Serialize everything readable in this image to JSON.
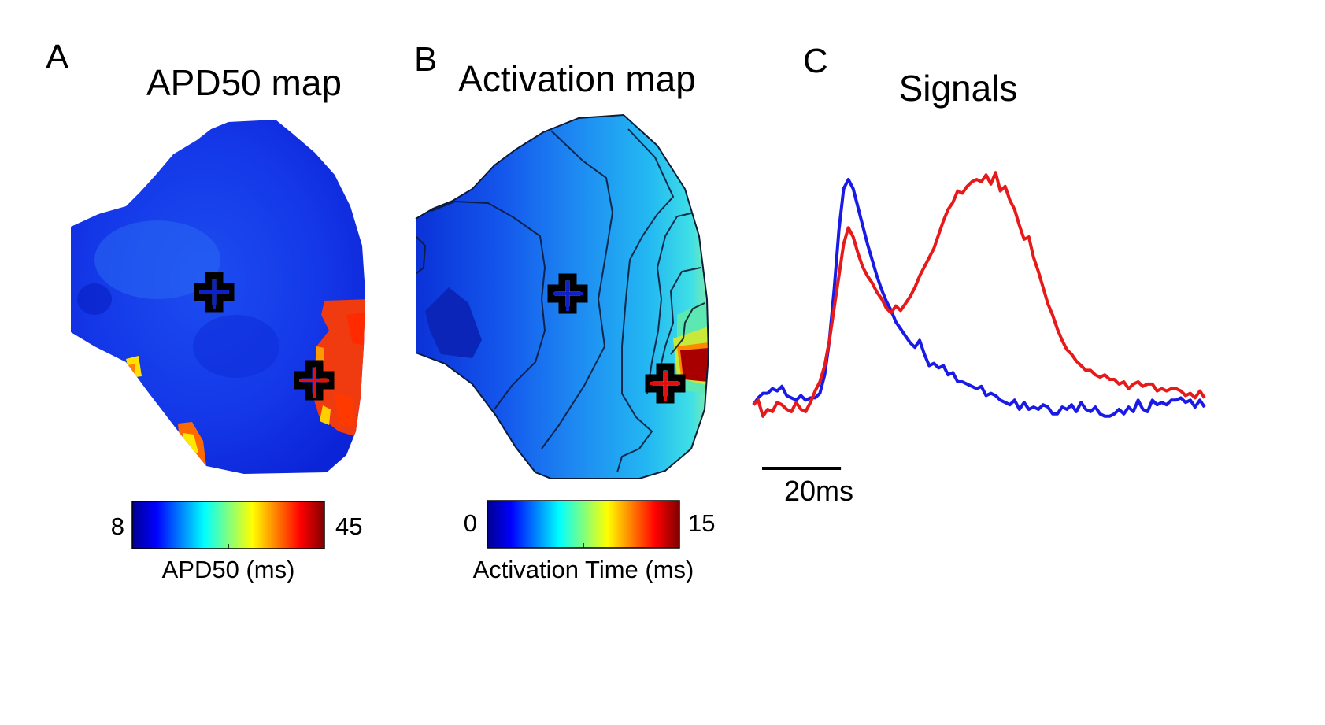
{
  "panel_a": {
    "letter": "A",
    "title": "APD50 map",
    "colorbar": {
      "min_label": "8",
      "max_label": "45",
      "label": "APD50 (ms)"
    },
    "markers": [
      {
        "name": "blue-site",
        "color": "#1020c8"
      },
      {
        "name": "red-site",
        "color": "#e01010"
      }
    ]
  },
  "panel_b": {
    "letter": "B",
    "title": "Activation map",
    "colorbar": {
      "min_label": "0",
      "max_label": "15",
      "label": "Activation Time (ms)"
    },
    "markers": [
      {
        "name": "blue-site",
        "color": "#1020c8"
      },
      {
        "name": "red-site",
        "color": "#e01010"
      }
    ]
  },
  "panel_c": {
    "letter": "C",
    "title": "Signals",
    "scale_bar_label": "20ms"
  },
  "chart_data": {
    "type": "line",
    "title": "Signals",
    "xlabel": "",
    "ylabel": "",
    "x_unit": "ms",
    "scale_bar_ms": 20,
    "grid": false,
    "series": [
      {
        "name": "blue",
        "color": "#1a1ae6",
        "points": [
          [
            0,
            0.02
          ],
          [
            1,
            0.05
          ],
          [
            2,
            0.07
          ],
          [
            3,
            0.07
          ],
          [
            4,
            0.09
          ],
          [
            5,
            0.08
          ],
          [
            6,
            0.1
          ],
          [
            7,
            0.06
          ],
          [
            8,
            0.05
          ],
          [
            9,
            0.04
          ],
          [
            10,
            0.06
          ],
          [
            11,
            0.04
          ],
          [
            12,
            0.05
          ],
          [
            13,
            0.05
          ],
          [
            14,
            0.07
          ],
          [
            15,
            0.15
          ],
          [
            16,
            0.3
          ],
          [
            17,
            0.52
          ],
          [
            18,
            0.78
          ],
          [
            19,
            0.96
          ],
          [
            20,
            1.0
          ],
          [
            21,
            0.96
          ],
          [
            22,
            0.88
          ],
          [
            23,
            0.8
          ],
          [
            24,
            0.72
          ],
          [
            25,
            0.65
          ],
          [
            26,
            0.58
          ],
          [
            27,
            0.52
          ],
          [
            28,
            0.47
          ],
          [
            29,
            0.43
          ],
          [
            30,
            0.38
          ],
          [
            31,
            0.35
          ],
          [
            32,
            0.32
          ],
          [
            33,
            0.29
          ],
          [
            34,
            0.27
          ],
          [
            35,
            0.3
          ],
          [
            36,
            0.24
          ],
          [
            37,
            0.19
          ],
          [
            38,
            0.2
          ],
          [
            39,
            0.18
          ],
          [
            40,
            0.19
          ],
          [
            41,
            0.15
          ],
          [
            42,
            0.16
          ],
          [
            43,
            0.12
          ],
          [
            44,
            0.12
          ],
          [
            45,
            0.11
          ],
          [
            46,
            0.1
          ],
          [
            47,
            0.09
          ],
          [
            48,
            0.1
          ],
          [
            49,
            0.06
          ],
          [
            50,
            0.07
          ],
          [
            51,
            0.06
          ],
          [
            52,
            0.04
          ],
          [
            53,
            0.03
          ],
          [
            54,
            0.02
          ],
          [
            55,
            0.04
          ],
          [
            56,
            0.0
          ],
          [
            57,
            0.03
          ],
          [
            58,
            0.0
          ],
          [
            59,
            0.01
          ],
          [
            60,
            0.0
          ],
          [
            61,
            0.02
          ],
          [
            62,
            0.01
          ],
          [
            63,
            -0.02
          ],
          [
            64,
            -0.02
          ],
          [
            65,
            0.01
          ],
          [
            66,
            0.0
          ],
          [
            67,
            0.02
          ],
          [
            68,
            -0.01
          ],
          [
            69,
            0.03
          ],
          [
            70,
            0.0
          ],
          [
            71,
            -0.01
          ],
          [
            72,
            0.01
          ],
          [
            73,
            -0.02
          ],
          [
            74,
            -0.03
          ],
          [
            75,
            -0.03
          ],
          [
            76,
            -0.02
          ],
          [
            77,
            0.0
          ],
          [
            78,
            -0.02
          ],
          [
            79,
            0.01
          ],
          [
            80,
            -0.01
          ],
          [
            81,
            0.04
          ],
          [
            82,
            0.0
          ],
          [
            83,
            -0.01
          ],
          [
            84,
            0.04
          ],
          [
            85,
            0.02
          ],
          [
            86,
            0.03
          ],
          [
            87,
            0.02
          ],
          [
            88,
            0.04
          ],
          [
            89,
            0.04
          ],
          [
            90,
            0.05
          ],
          [
            91,
            0.03
          ],
          [
            92,
            0.04
          ],
          [
            93,
            0.01
          ],
          [
            94,
            0.04
          ],
          [
            95,
            0.01
          ]
        ]
      },
      {
        "name": "red",
        "color": "#e61a1a",
        "points": [
          [
            0,
            0.02
          ],
          [
            1,
            0.04
          ],
          [
            2,
            -0.03
          ],
          [
            3,
            0.0
          ],
          [
            4,
            -0.01
          ],
          [
            5,
            0.03
          ],
          [
            6,
            0.02
          ],
          [
            7,
            0.0
          ],
          [
            8,
            -0.01
          ],
          [
            9,
            0.03
          ],
          [
            10,
            0.0
          ],
          [
            11,
            -0.01
          ],
          [
            12,
            0.03
          ],
          [
            13,
            0.08
          ],
          [
            14,
            0.12
          ],
          [
            15,
            0.19
          ],
          [
            16,
            0.3
          ],
          [
            17,
            0.44
          ],
          [
            18,
            0.58
          ],
          [
            19,
            0.72
          ],
          [
            20,
            0.79
          ],
          [
            21,
            0.75
          ],
          [
            22,
            0.68
          ],
          [
            23,
            0.62
          ],
          [
            24,
            0.58
          ],
          [
            25,
            0.55
          ],
          [
            26,
            0.51
          ],
          [
            27,
            0.48
          ],
          [
            28,
            0.44
          ],
          [
            29,
            0.42
          ],
          [
            30,
            0.45
          ],
          [
            31,
            0.43
          ],
          [
            32,
            0.46
          ],
          [
            33,
            0.49
          ],
          [
            34,
            0.53
          ],
          [
            35,
            0.58
          ],
          [
            36,
            0.62
          ],
          [
            37,
            0.66
          ],
          [
            38,
            0.7
          ],
          [
            39,
            0.76
          ],
          [
            40,
            0.82
          ],
          [
            41,
            0.87
          ],
          [
            42,
            0.9
          ],
          [
            43,
            0.95
          ],
          [
            44,
            0.94
          ],
          [
            45,
            0.97
          ],
          [
            46,
            0.99
          ],
          [
            47,
            1.0
          ],
          [
            48,
            0.99
          ],
          [
            49,
            1.02
          ],
          [
            50,
            0.98
          ],
          [
            51,
            1.03
          ],
          [
            52,
            0.95
          ],
          [
            53,
            0.97
          ],
          [
            54,
            0.91
          ],
          [
            55,
            0.87
          ],
          [
            56,
            0.8
          ],
          [
            57,
            0.74
          ],
          [
            58,
            0.75
          ],
          [
            59,
            0.66
          ],
          [
            60,
            0.6
          ],
          [
            61,
            0.53
          ],
          [
            62,
            0.46
          ],
          [
            63,
            0.41
          ],
          [
            64,
            0.35
          ],
          [
            65,
            0.3
          ],
          [
            66,
            0.26
          ],
          [
            67,
            0.24
          ],
          [
            68,
            0.21
          ],
          [
            69,
            0.19
          ],
          [
            70,
            0.17
          ],
          [
            71,
            0.17
          ],
          [
            72,
            0.15
          ],
          [
            73,
            0.14
          ],
          [
            74,
            0.15
          ],
          [
            75,
            0.13
          ],
          [
            76,
            0.13
          ],
          [
            77,
            0.11
          ],
          [
            78,
            0.12
          ],
          [
            79,
            0.09
          ],
          [
            80,
            0.11
          ],
          [
            81,
            0.12
          ],
          [
            82,
            0.1
          ],
          [
            83,
            0.11
          ],
          [
            84,
            0.11
          ],
          [
            85,
            0.08
          ],
          [
            86,
            0.09
          ],
          [
            87,
            0.08
          ],
          [
            88,
            0.09
          ],
          [
            89,
            0.09
          ],
          [
            90,
            0.08
          ],
          [
            91,
            0.06
          ],
          [
            92,
            0.07
          ],
          [
            93,
            0.05
          ],
          [
            94,
            0.08
          ],
          [
            95,
            0.05
          ]
        ]
      }
    ]
  }
}
